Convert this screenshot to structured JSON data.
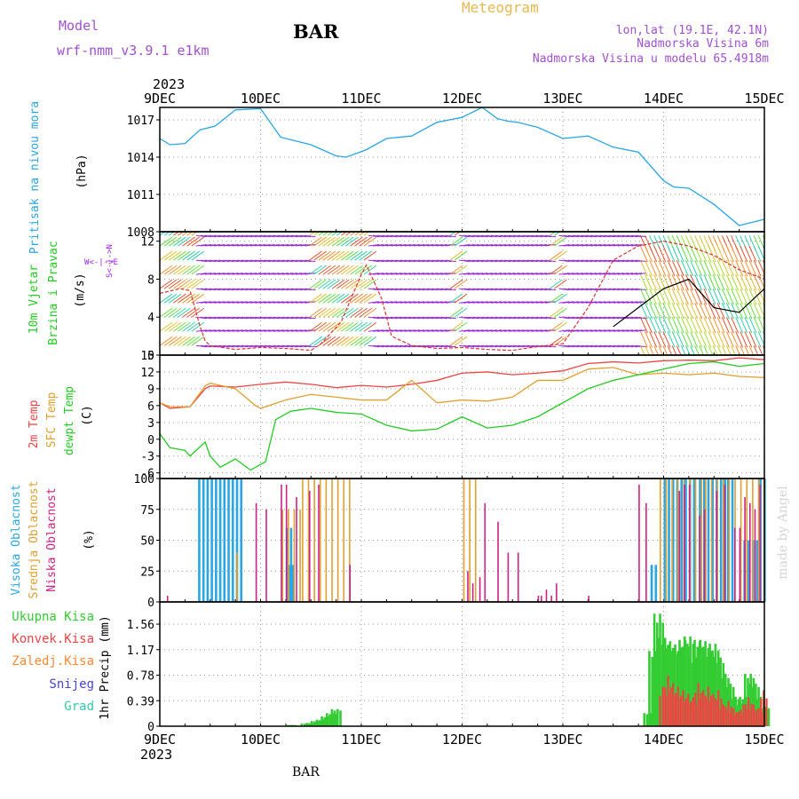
{
  "header": {
    "model_label": "Model",
    "model_name": "wrf-nmm_v3.9.1 e1km",
    "station": "BAR",
    "chart_title": "Meteogram",
    "lonlat": "lon,lat (19.1E, 42.1N)",
    "altitude": "Nadmorska Visina 6m",
    "model_altitude": "Nadmorska Visina u modelu 65.4918m",
    "footer_station": "BAR",
    "watermark": "made by Angel"
  },
  "time_axis": {
    "year": "2023",
    "start": "2023-12-09T00:00",
    "end": "2023-12-15T00:00",
    "tick_labels": [
      "9DEC",
      "10DEC",
      "11DEC",
      "12DEC",
      "13DEC",
      "14DEC",
      "15DEC"
    ]
  },
  "colors": {
    "pressure": "#29a6e6",
    "wind_label": "#22cc22",
    "wind_unit_label": "#a020f0",
    "temp_2m": "#ee4444",
    "temp_sfc": "#e0a030",
    "dewpoint": "#22cc22",
    "cloud_high": "#29a6e6",
    "cloud_mid": "#e0a030",
    "cloud_low": "#cc2288",
    "precip_total": "#33cc33",
    "precip_conv": "#ee4444",
    "precip_frz": "#ff8833",
    "precip_snow": "#4444dd",
    "precip_grad": "#33ccaa",
    "header_purple": "#a050d0",
    "header_orange": "#e6b850"
  },
  "chart_data": [
    {
      "id": "pressure",
      "type": "line",
      "ylabel_top": "Pritisak na nivou mora",
      "ylabel_unit": "(hPa)",
      "ylim": [
        1008,
        1018
      ],
      "yticks": [
        1008,
        1011,
        1014,
        1017
      ],
      "grid": true,
      "series": [
        {
          "name": "",
          "x": [
            0,
            0.1,
            0.25,
            0.4,
            0.55,
            0.75,
            1.0,
            1.2,
            1.5,
            1.75,
            1.85,
            2.05,
            2.25,
            2.5,
            2.75,
            3.0,
            3.2,
            3.35,
            3.45,
            3.55,
            3.75,
            4.0,
            4.25,
            4.5,
            4.75,
            5.0,
            5.1,
            5.25,
            5.5,
            5.75,
            6.0
          ],
          "values": [
            1015.5,
            1015.0,
            1015.1,
            1016.2,
            1016.5,
            1017.8,
            1017.9,
            1015.6,
            1015.0,
            1014.1,
            1014.0,
            1014.6,
            1015.5,
            1015.7,
            1016.8,
            1017.2,
            1018.0,
            1017.1,
            1016.9,
            1016.8,
            1016.4,
            1015.5,
            1015.7,
            1014.8,
            1014.4,
            1012.1,
            1011.6,
            1011.5,
            1010.2,
            1008.5,
            1009.0
          ]
        }
      ]
    },
    {
      "id": "wind",
      "type": "line",
      "ylabel_top": "10m Vjetar",
      "ylabel_bottom": "Brzina i Pravac",
      "ylabel_unit": "(m/s)",
      "compass_ns": "S<-|->N",
      "compass_we": "W<-|->E",
      "ylim": [
        0,
        13
      ],
      "yticks": [
        0,
        4,
        8,
        12
      ],
      "grid": true,
      "series": [
        {
          "name": "",
          "x": [
            0,
            0.2,
            0.3,
            0.4,
            0.45,
            0.5,
            0.75,
            1.0,
            1.25,
            1.5,
            1.6,
            1.8,
            2.0,
            2.05,
            2.2,
            2.3,
            2.5,
            2.75,
            3.0,
            3.25,
            3.5,
            3.75,
            4.0,
            4.25,
            4.5,
            4.75,
            5.0,
            5.25,
            5.5,
            5.75,
            6.0
          ],
          "values": [
            6.5,
            7,
            6.8,
            3,
            1.5,
            1.0,
            0.6,
            0.8,
            0.7,
            0.5,
            1.2,
            3.5,
            8.5,
            9.5,
            6,
            2,
            1.0,
            0.7,
            0.8,
            0.6,
            0.5,
            0.9,
            1.2,
            5,
            10,
            11.5,
            12,
            11.5,
            10.5,
            9,
            8
          ]
        },
        {
          "name": "",
          "x": [
            4.5,
            4.75,
            5.0,
            5.25,
            5.5,
            5.75,
            6.0
          ],
          "values": [
            3,
            5,
            7,
            8,
            5,
            4.5,
            7
          ]
        }
      ]
    },
    {
      "id": "temperature",
      "type": "line",
      "ylabel_top": "2m Temp",
      "ylabel_mid": "SFC Temp",
      "ylabel_bottom": "dewpt Temp",
      "ylabel_unit": "(C)",
      "ylim": [
        -7,
        15
      ],
      "yticks": [
        -6,
        -3,
        0,
        3,
        6,
        9,
        12,
        15
      ],
      "grid": true,
      "series": [
        {
          "name": "2m Temp",
          "x": [
            0,
            0.1,
            0.3,
            0.45,
            0.5,
            0.75,
            1.0,
            1.25,
            1.5,
            1.75,
            2.0,
            2.25,
            2.5,
            2.75,
            3.0,
            3.25,
            3.5,
            3.75,
            4.0,
            4.25,
            4.5,
            4.75,
            5.0,
            5.25,
            5.5,
            5.75,
            6.0
          ],
          "values": [
            6.5,
            5.5,
            5.8,
            9,
            9.5,
            9.3,
            9.8,
            10.2,
            9.8,
            9.2,
            9.6,
            9.3,
            9.8,
            10.5,
            11.8,
            12,
            11.5,
            11.8,
            12.2,
            13.5,
            13.8,
            13.6,
            14,
            14.1,
            14,
            14.5,
            14.2
          ]
        },
        {
          "name": "SFC Temp",
          "x": [
            0,
            0.1,
            0.3,
            0.45,
            0.5,
            0.75,
            0.95,
            1.0,
            1.25,
            1.5,
            1.75,
            2.0,
            2.25,
            2.5,
            2.75,
            3.0,
            3.25,
            3.5,
            3.75,
            4.0,
            4.25,
            4.5,
            4.75,
            5.0,
            5.25,
            5.5,
            5.75,
            6.0
          ],
          "values": [
            6.5,
            5.8,
            5.8,
            9.5,
            10.0,
            9,
            6,
            5.5,
            7,
            8,
            7.5,
            7,
            7,
            10.5,
            6.5,
            7,
            6.8,
            7.5,
            10.5,
            10.5,
            12.5,
            12.8,
            11.5,
            11.8,
            11.5,
            11.8,
            11.2,
            11
          ]
        },
        {
          "name": "dewpt Temp",
          "x": [
            0,
            0.1,
            0.25,
            0.3,
            0.45,
            0.5,
            0.6,
            0.75,
            0.9,
            1.0,
            1.05,
            1.15,
            1.3,
            1.5,
            1.75,
            2.0,
            2.25,
            2.5,
            2.75,
            3.0,
            3.25,
            3.5,
            3.75,
            4.0,
            4.25,
            4.5,
            4.75,
            5.0,
            5.25,
            5.5,
            5.75,
            6.0
          ],
          "values": [
            1,
            -1.5,
            -2,
            -3,
            -0.5,
            -3,
            -5,
            -3.5,
            -5.5,
            -4.5,
            -4,
            3.5,
            5,
            5.5,
            4.8,
            4.5,
            2.5,
            1.5,
            1.8,
            4,
            2,
            2.5,
            4,
            6.5,
            9,
            10.5,
            11.5,
            12.5,
            13.5,
            13.8,
            13,
            13.5
          ]
        }
      ]
    },
    {
      "id": "cloud",
      "type": "bar",
      "ylabel_top": "Visoka Oblacnost",
      "ylabel_mid": "Srednja Oblacnost",
      "ylabel_bottom": "Niska Oblacnost",
      "ylabel_unit": "(%)",
      "ylim": [
        0,
        100
      ],
      "yticks": [
        0,
        25,
        50,
        75,
        100
      ],
      "grid": true,
      "series": [
        {
          "name": "Visoka Oblacnost",
          "intervals": [
            [
              0.38,
              0.8,
              100
            ],
            [
              1.25,
              1.3,
              60
            ],
            [
              1.27,
              1.33,
              30
            ],
            [
              4.87,
              4.95,
              30
            ],
            [
              5.0,
              5.32,
              100
            ],
            [
              5.35,
              5.63,
              100
            ],
            [
              5.63,
              5.7,
              100
            ],
            [
              5.75,
              5.95,
              50
            ],
            [
              5.95,
              6.0,
              100
            ]
          ]
        },
        {
          "name": "Srednja Oblacnost",
          "intervals": [
            [
              0.75,
              0.8,
              40
            ],
            [
              1.2,
              1.4,
              75
            ],
            [
              1.4,
              1.75,
              100
            ],
            [
              1.75,
              1.9,
              100
            ],
            [
              3.0,
              3.15,
              100
            ],
            [
              4.95,
              5.4,
              100
            ],
            [
              5.4,
              5.75,
              100
            ],
            [
              5.75,
              6.0,
              100
            ]
          ]
        },
        {
          "name": "Niska Oblacnost",
          "x": [
            0.07,
            0.95,
            1.05,
            1.2,
            1.25,
            1.35,
            1.48,
            1.57,
            1.88,
            3.05,
            3.1,
            3.17,
            3.22,
            3.35,
            3.45,
            3.55,
            3.75,
            3.78,
            3.83,
            3.88,
            3.93,
            4.25,
            4.75,
            4.82,
            5.15,
            5.2,
            5.25,
            5.35,
            5.4,
            5.52,
            5.6,
            5.7,
            5.75,
            5.8,
            5.85,
            5.9,
            5.95
          ],
          "values": [
            5,
            80,
            75,
            95,
            95,
            85,
            90,
            95,
            30,
            25,
            15,
            20,
            80,
            65,
            40,
            40,
            5,
            5,
            10,
            5,
            15,
            5,
            95,
            80,
            90,
            95,
            95,
            70,
            75,
            90,
            95,
            60,
            60,
            85,
            80,
            75,
            95
          ]
        }
      ]
    },
    {
      "id": "precip",
      "type": "bar",
      "legend": [
        "Ukupna Kisa",
        "Konvek.Kisa",
        "Zaledj.Kisa",
        "Snijeg",
        "Grad"
      ],
      "ylabel_unit": "1hr Precip (mm)",
      "ylim": [
        0,
        1.9
      ],
      "yticks": [
        0,
        0.39,
        0.78,
        1.17,
        1.56
      ],
      "ytick_labels": [
        "0",
        "0.39",
        "0.78",
        "1.17",
        "1.56"
      ],
      "grid": true,
      "series": [
        {
          "name": "Ukupna Kisa",
          "x": [
            1.3,
            1.35,
            1.45,
            1.5,
            1.55,
            1.6,
            1.65,
            1.7,
            1.75,
            4.85,
            4.9,
            4.95,
            5.0,
            5.05,
            5.1,
            5.15,
            5.2,
            5.25,
            5.3,
            5.35,
            5.4,
            5.45,
            5.5,
            5.55,
            5.6,
            5.65,
            5.7,
            5.75,
            5.8,
            5.85,
            5.9,
            5.95,
            6.0
          ],
          "values": [
            0.02,
            0.01,
            0.04,
            0.05,
            0.08,
            0.1,
            0.15,
            0.2,
            0.26,
            0.2,
            1.15,
            1.72,
            1.35,
            1.3,
            1.25,
            1.2,
            1.32,
            1.37,
            1.05,
            1.32,
            1.3,
            1.15,
            1.26,
            1.05,
            0.8,
            0.65,
            0.45,
            0.35,
            0.45,
            0.8,
            0.65,
            0.45,
            0.3
          ]
        },
        {
          "name": "Konvek.Kisa",
          "x": [
            5.0,
            5.05,
            5.1,
            5.15,
            5.2,
            5.25,
            5.3,
            5.35,
            5.4,
            5.45,
            5.5,
            5.55,
            5.6,
            5.65,
            5.7,
            5.75,
            5.8,
            5.85,
            5.9,
            5.95,
            6.0
          ],
          "values": [
            0.55,
            0.7,
            0.6,
            0.55,
            0.5,
            0.45,
            0.4,
            0.6,
            0.5,
            0.55,
            0.45,
            0.5,
            0.3,
            0.35,
            0.25,
            0.2,
            0.3,
            0.4,
            0.3,
            0.25,
            0.5
          ]
        }
      ]
    }
  ]
}
